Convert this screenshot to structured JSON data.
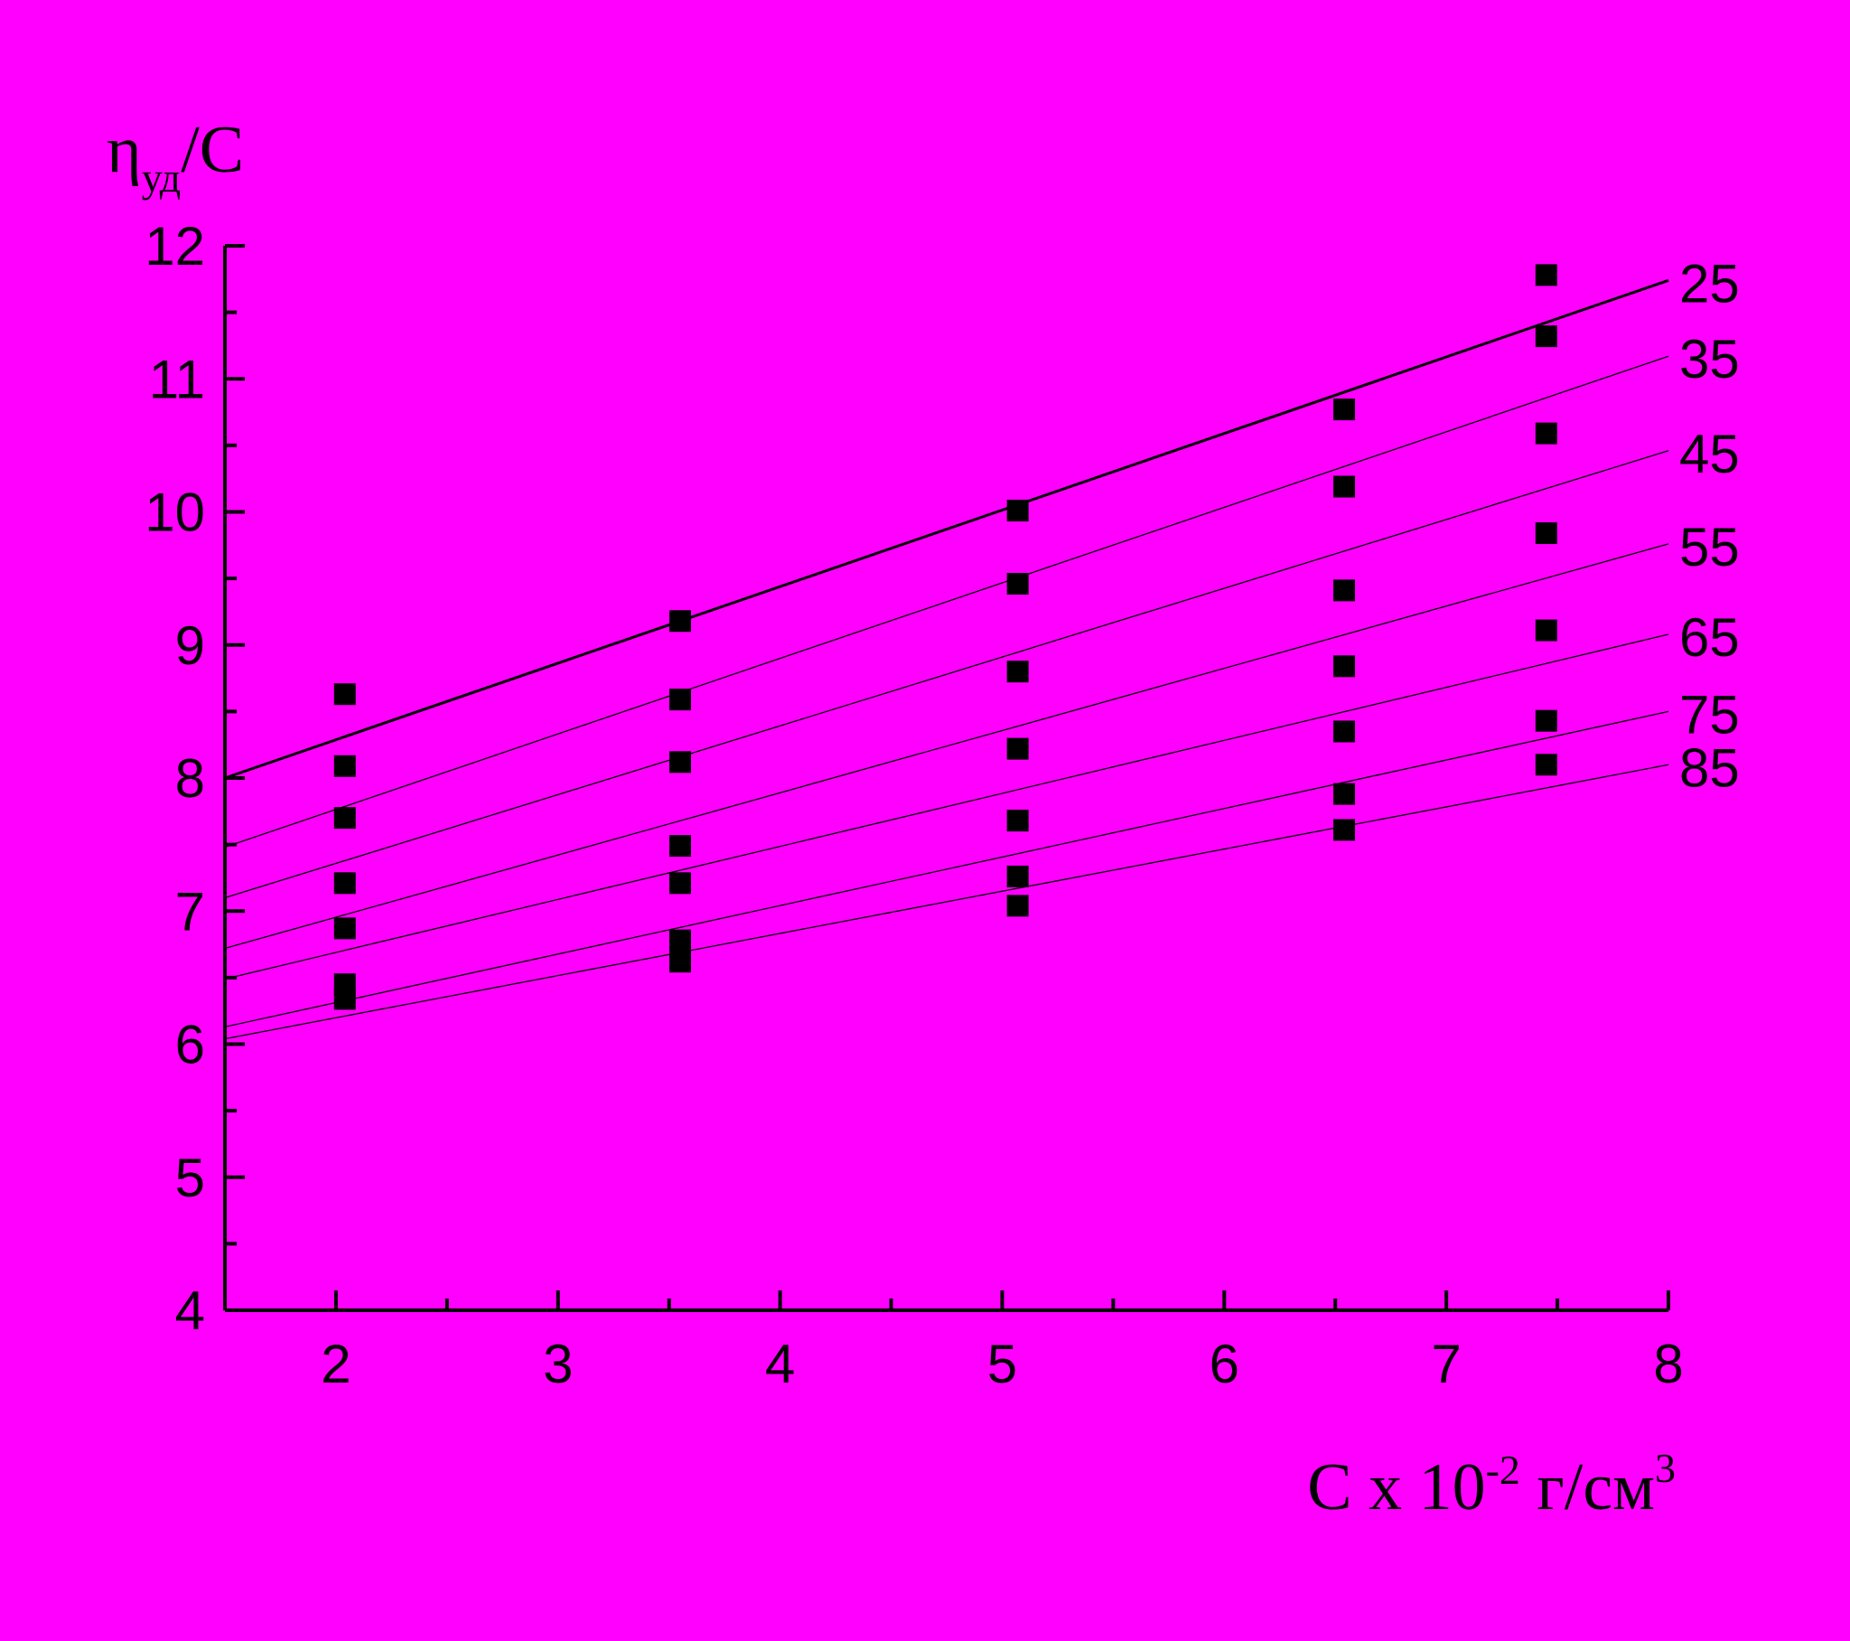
{
  "chart_data": {
    "type": "scatter",
    "y_label": [
      "η",
      "уд",
      "/С"
    ],
    "x_label": [
      "С x 10",
      "-2",
      " г/см",
      "3"
    ],
    "xlim": [
      1.5,
      8
    ],
    "ylim": [
      4,
      12
    ],
    "xticks": [
      2,
      3,
      4,
      5,
      6,
      7,
      8
    ],
    "yticks": [
      4,
      5,
      6,
      7,
      8,
      9,
      10,
      11,
      12
    ],
    "xminorticks": [
      2.5,
      3.5,
      4.5,
      5.5,
      6.5,
      7.5
    ],
    "yminorticks": [
      4.5,
      5.5,
      6.5,
      7.5,
      8.5,
      9.5,
      10.5,
      11.5
    ],
    "color": "#000000",
    "x": [
      2.04,
      3.55,
      5.07,
      6.54,
      7.45
    ],
    "series": [
      {
        "name": "25",
        "values": [
          8.63,
          9.18,
          10.01,
          10.77,
          11.78
        ],
        "line": [
          8.0,
          11.74
        ],
        "width": 3
      },
      {
        "name": "35",
        "values": [
          8.09,
          8.59,
          9.46,
          10.19,
          11.32
        ],
        "line": [
          7.48,
          11.17
        ],
        "width": 1.3
      },
      {
        "name": "45",
        "values": [
          7.7,
          8.12,
          8.8,
          9.41,
          10.59
        ],
        "line": [
          7.1,
          10.46
        ],
        "width": 1.3
      },
      {
        "name": "55",
        "values": [
          7.21,
          7.49,
          8.22,
          8.84,
          9.84
        ],
        "line": [
          6.72,
          9.76
        ],
        "width": 1.3
      },
      {
        "name": "65",
        "values": [
          6.87,
          7.21,
          7.68,
          8.35,
          9.11
        ],
        "line": [
          6.49,
          9.08
        ],
        "width": 1.3
      },
      {
        "name": "75",
        "values": [
          6.45,
          6.78,
          7.26,
          7.88,
          8.43
        ],
        "line": [
          6.13,
          8.5
        ],
        "width": 1.3
      },
      {
        "name": "85",
        "values": [
          6.34,
          6.62,
          7.04,
          7.61,
          8.1
        ],
        "line": [
          6.04,
          8.1
        ],
        "width": 1.3
      }
    ]
  }
}
